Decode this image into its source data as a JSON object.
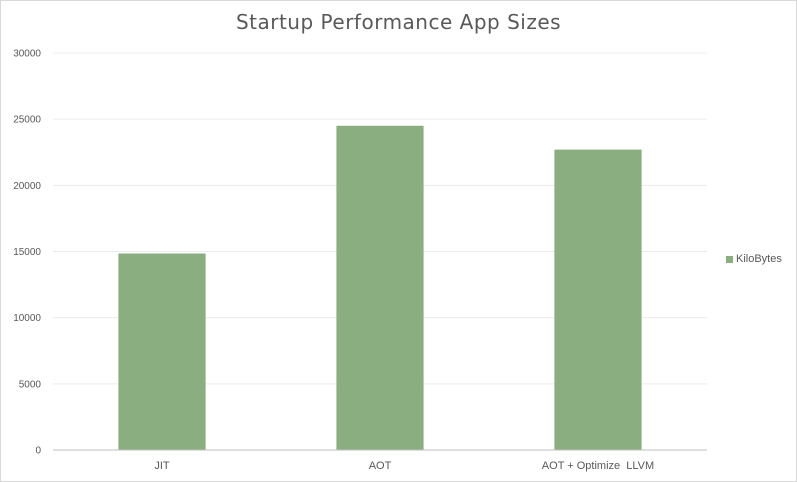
{
  "chart_data": {
    "type": "bar",
    "title": "Startup Performance App Sizes",
    "categories": [
      "JIT",
      "AOT",
      "AOT + Optimize  LLVM"
    ],
    "series": [
      {
        "name": "KiloBytes",
        "values": [
          14850,
          24500,
          22700
        ],
        "color": "#8aae80"
      }
    ],
    "ylim": [
      0,
      30000
    ],
    "yticks": [
      0,
      5000,
      10000,
      15000,
      20000,
      25000,
      30000
    ],
    "grid": true,
    "legend_position": "right"
  }
}
